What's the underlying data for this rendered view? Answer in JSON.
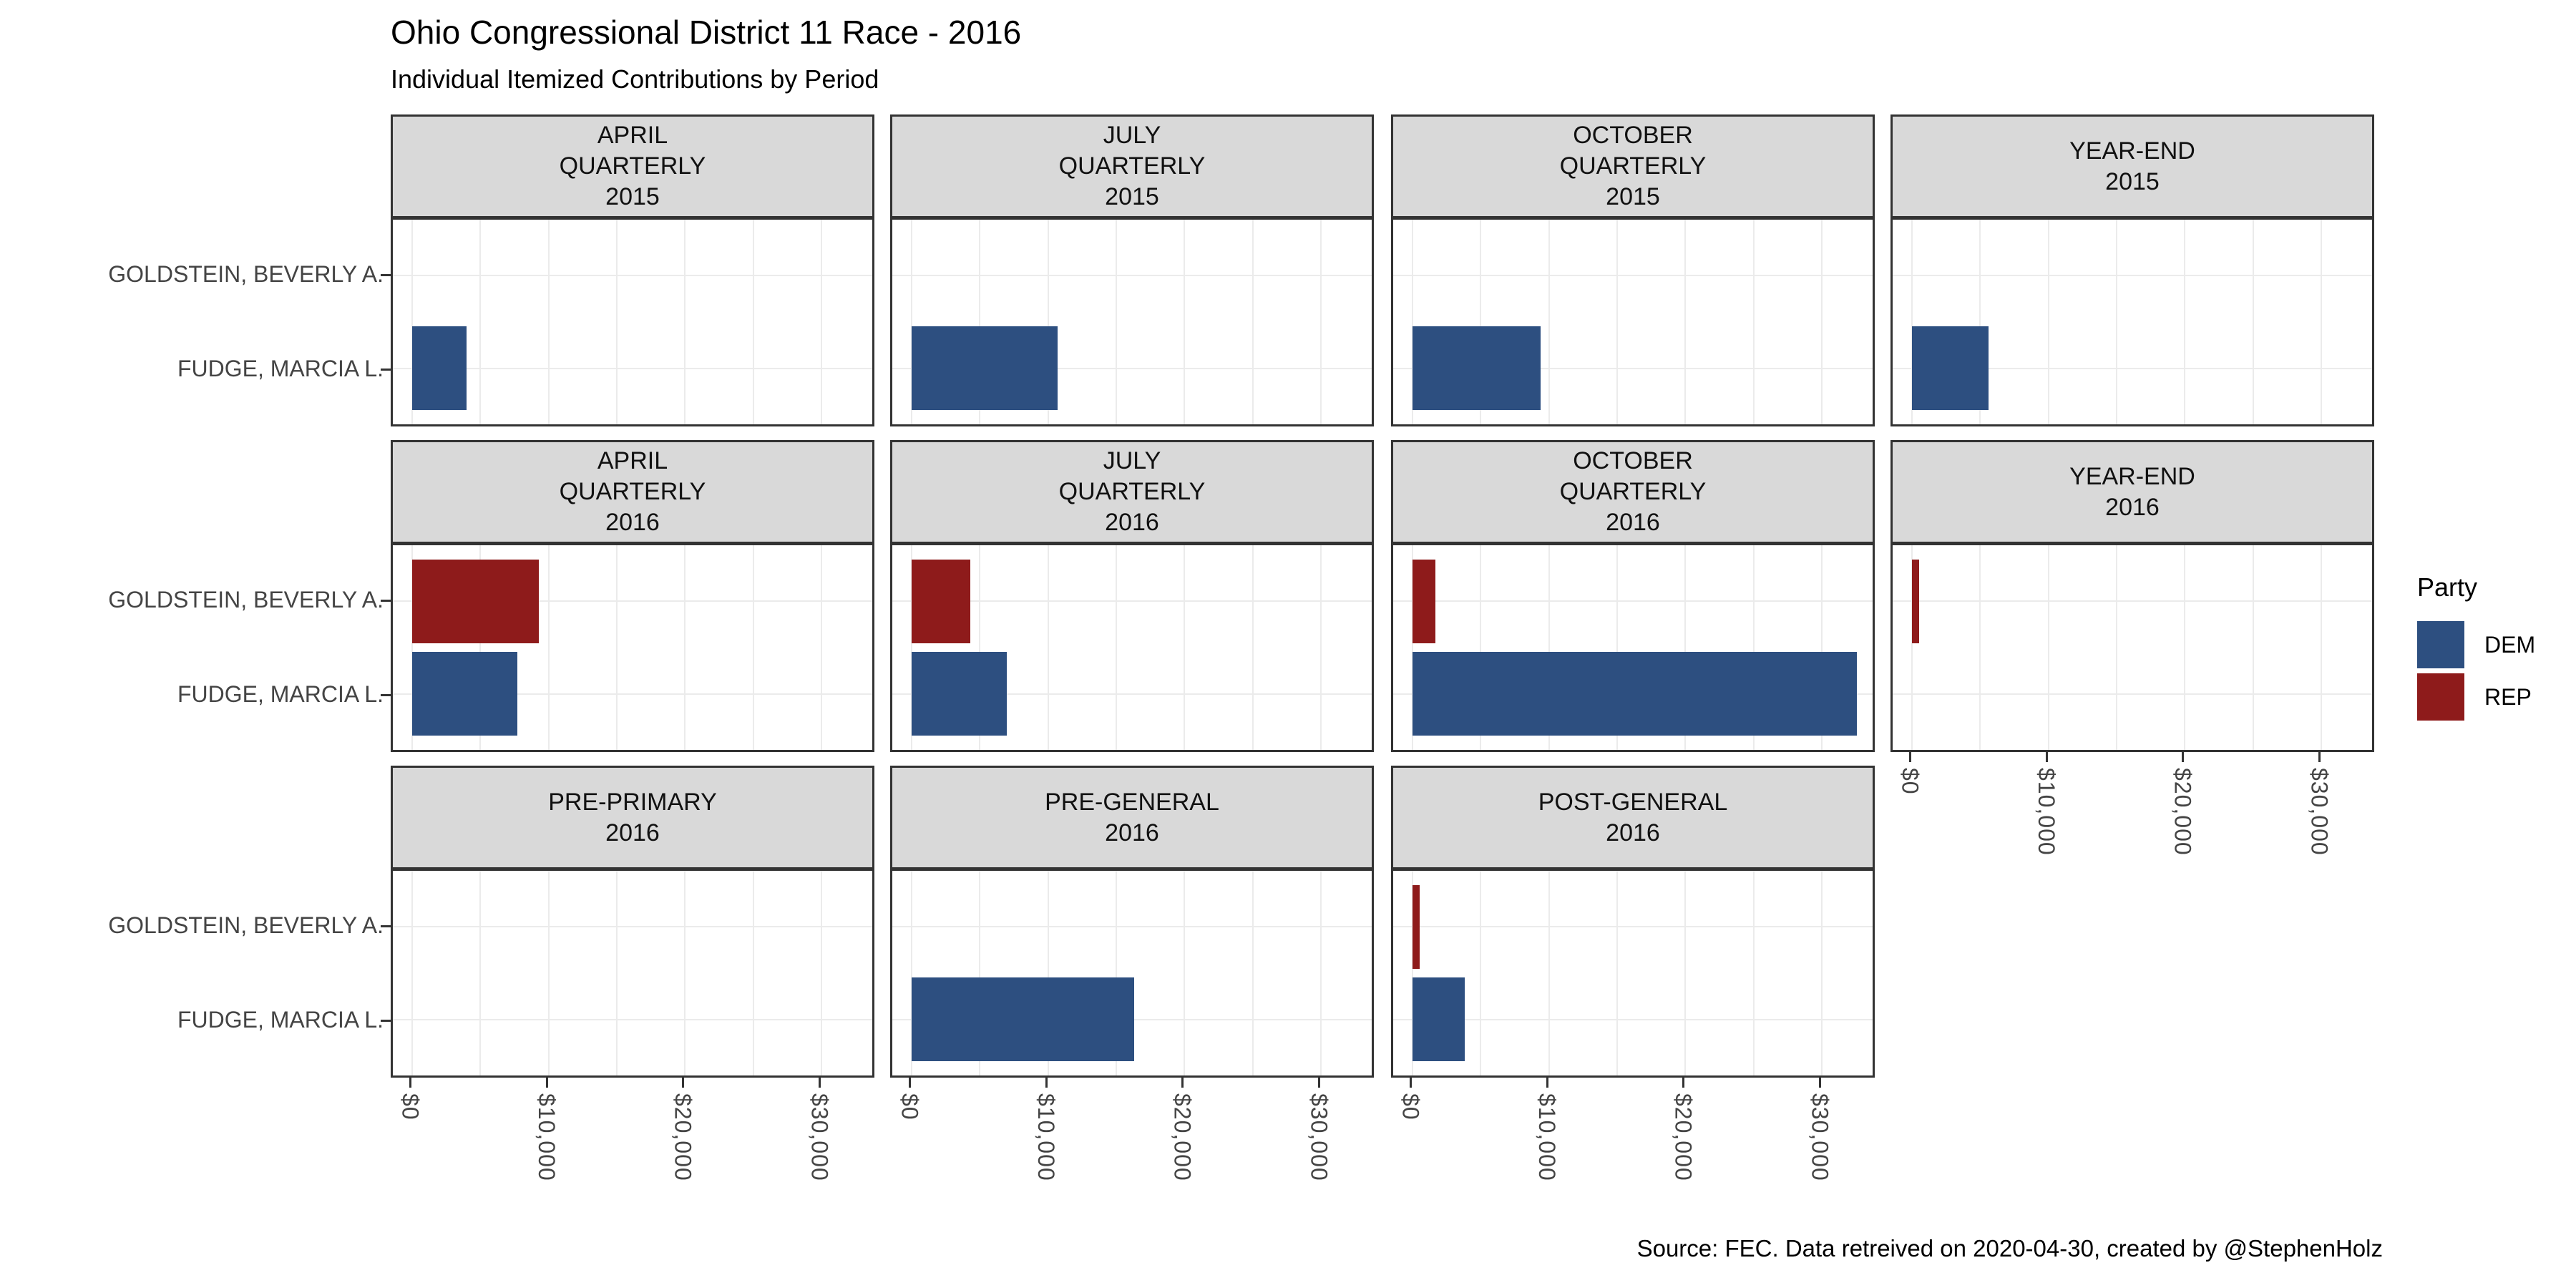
{
  "title": "Ohio Congressional District 11 Race - 2016",
  "subtitle": "Individual Itemized Contributions by Period",
  "caption": "Source: FEC. Data retreived on 2020-04-30, created by @StephenHolz",
  "legend": {
    "title": "Party",
    "items": [
      {
        "label": "DEM",
        "color": "#2D4F80"
      },
      {
        "label": "REP",
        "color": "#8E1B1B"
      }
    ]
  },
  "colors": {
    "strip_bg": "#D9D9D9",
    "panel_border": "#333333",
    "gridline": "#EBEBEB",
    "axis_text": "#444444",
    "tick_mark": "#333333",
    "dem": "#2D4F80",
    "rep": "#8E1B1B"
  },
  "chart_data": {
    "type": "bar",
    "orientation": "horizontal",
    "categories": [
      {
        "label": "GOLDSTEIN, BEVERLY A.",
        "party": "REP"
      },
      {
        "label": "FUDGE, MARCIA L.",
        "party": "DEM"
      }
    ],
    "party_colors": {
      "DEM": "#2D4F80",
      "REP": "#8E1B1B"
    },
    "x_axis": {
      "tick_values": [
        0,
        10000,
        20000,
        30000
      ],
      "tick_labels": [
        "$0",
        "$10,000",
        "$20,000",
        "$30,000"
      ],
      "gridline_step": 5000,
      "max_gridline": 30000,
      "range": [
        -1400,
        34100
      ],
      "label_angle_deg": 90
    },
    "grid": true,
    "legend_position": "right",
    "facet_grid": {
      "rows": 3,
      "cols": 4,
      "missing_cells": [
        {
          "row": 2,
          "col": 3
        }
      ]
    },
    "facets": [
      {
        "strip_lines": [
          "APRIL",
          "QUARTERLY",
          "2015"
        ],
        "row": 0,
        "col": 0,
        "values": [
          null,
          4000
        ]
      },
      {
        "strip_lines": [
          "JULY",
          "QUARTERLY",
          "2015"
        ],
        "row": 0,
        "col": 1,
        "values": [
          null,
          10700
        ]
      },
      {
        "strip_lines": [
          "OCTOBER",
          "QUARTERLY",
          "2015"
        ],
        "row": 0,
        "col": 2,
        "values": [
          null,
          9400
        ]
      },
      {
        "strip_lines": [
          "YEAR-END",
          "2015"
        ],
        "row": 0,
        "col": 3,
        "values": [
          null,
          5600
        ]
      },
      {
        "strip_lines": [
          "APRIL",
          "QUARTERLY",
          "2016"
        ],
        "row": 1,
        "col": 0,
        "values": [
          9300,
          7700
        ]
      },
      {
        "strip_lines": [
          "JULY",
          "QUARTERLY",
          "2016"
        ],
        "row": 1,
        "col": 1,
        "values": [
          4300,
          7000
        ]
      },
      {
        "strip_lines": [
          "OCTOBER",
          "QUARTERLY",
          "2016"
        ],
        "row": 1,
        "col": 2,
        "values": [
          1700,
          32600
        ]
      },
      {
        "strip_lines": [
          "YEAR-END",
          "2016"
        ],
        "row": 1,
        "col": 3,
        "values": [
          550,
          null
        ]
      },
      {
        "strip_lines": [
          "PRE-PRIMARY",
          "2016"
        ],
        "row": 2,
        "col": 0,
        "values": [
          null,
          null
        ]
      },
      {
        "strip_lines": [
          "PRE-GENERAL",
          "2016"
        ],
        "row": 2,
        "col": 1,
        "values": [
          null,
          16300
        ]
      },
      {
        "strip_lines": [
          "POST-GENERAL",
          "2016"
        ],
        "row": 2,
        "col": 2,
        "values": [
          550,
          3850
        ]
      }
    ]
  }
}
